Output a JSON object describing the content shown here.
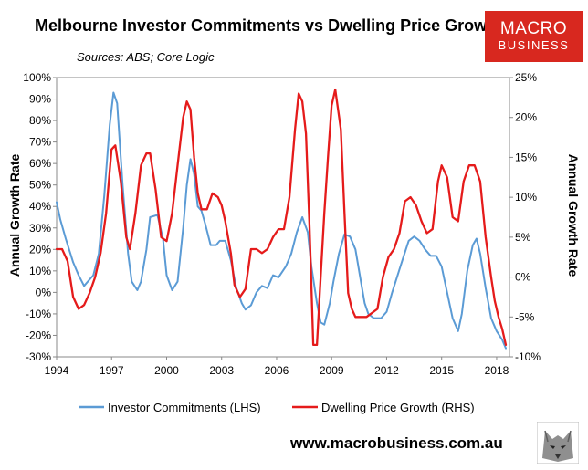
{
  "title": "Melbourne Investor Commitments vs Dwelling Price Growth",
  "sources": "Sources: ABS; Core Logic",
  "logo": {
    "line1": "MACRO",
    "line2": "BUSINESS"
  },
  "website": "www.macrobusiness.com.au",
  "chart_data": {
    "type": "line",
    "xlim": [
      1994,
      2018.7
    ],
    "x_ticks": [
      "1994",
      "1997",
      "2000",
      "2003",
      "2006",
      "2009",
      "2012",
      "2015",
      "2018"
    ],
    "left_axis": {
      "label": "Annual Growth Rate",
      "ylim": [
        -30,
        100
      ],
      "ticks": [
        "-30%",
        "-20%",
        "-10%",
        "0%",
        "10%",
        "20%",
        "30%",
        "40%",
        "50%",
        "60%",
        "70%",
        "80%",
        "90%",
        "100%"
      ]
    },
    "right_axis": {
      "label": "Annual Growth Rate",
      "ylim": [
        -10,
        25
      ],
      "ticks": [
        "-10%",
        "-5%",
        "0%",
        "5%",
        "10%",
        "15%",
        "20%",
        "25%"
      ]
    },
    "grid": false,
    "legend_position": "bottom",
    "series": [
      {
        "name": "Investor Commitments (LHS)",
        "axis": "left",
        "color": "#5b9bd5",
        "x": [
          1994.0,
          1994.2,
          1994.5,
          1994.9,
          1995.2,
          1995.5,
          1995.7,
          1996.0,
          1996.3,
          1996.6,
          1996.9,
          1997.1,
          1997.3,
          1997.6,
          1997.9,
          1998.1,
          1998.4,
          1998.6,
          1998.9,
          1999.1,
          1999.5,
          1999.8,
          2000.0,
          2000.3,
          2000.6,
          2000.9,
          2001.1,
          2001.3,
          2001.5,
          2001.7,
          2001.9,
          2002.1,
          2002.4,
          2002.7,
          2002.9,
          2003.2,
          2003.5,
          2003.8,
          2004.1,
          2004.3,
          2004.6,
          2004.9,
          2005.2,
          2005.5,
          2005.8,
          2006.1,
          2006.5,
          2006.8,
          2007.1,
          2007.4,
          2007.7,
          2007.9,
          2008.2,
          2008.4,
          2008.6,
          2008.9,
          2009.1,
          2009.4,
          2009.7,
          2010.0,
          2010.3,
          2010.6,
          2010.8,
          2011.0,
          2011.3,
          2011.7,
          2012.0,
          2012.3,
          2012.6,
          2012.9,
          2013.2,
          2013.5,
          2013.8,
          2014.1,
          2014.4,
          2014.7,
          2015.0,
          2015.3,
          2015.6,
          2015.9,
          2016.1,
          2016.4,
          2016.7,
          2016.9,
          2017.1,
          2017.4,
          2017.7,
          2018.0,
          2018.3,
          2018.5
        ],
        "values": [
          42,
          34,
          25,
          14,
          8,
          3,
          5,
          8,
          18,
          45,
          78,
          93,
          88,
          50,
          18,
          5,
          1,
          5,
          20,
          35,
          36,
          25,
          8,
          1,
          5,
          30,
          50,
          62,
          55,
          40,
          38,
          32,
          22,
          22,
          24,
          24,
          15,
          2,
          -5,
          -8,
          -6,
          0,
          3,
          2,
          8,
          7,
          12,
          18,
          28,
          35,
          28,
          12,
          -5,
          -14,
          -15,
          -5,
          5,
          18,
          27,
          26,
          20,
          5,
          -5,
          -10,
          -12,
          -12,
          -9,
          0,
          8,
          16,
          24,
          26,
          24,
          20,
          17,
          17,
          12,
          0,
          -12,
          -18,
          -10,
          10,
          22,
          25,
          18,
          2,
          -12,
          -18,
          -22,
          -26
        ]
      },
      {
        "name": "Dwelling Price Growth (RHS)",
        "axis": "right",
        "color": "#e51b1b",
        "x": [
          1994.0,
          1994.3,
          1994.6,
          1994.9,
          1995.2,
          1995.5,
          1995.8,
          1996.1,
          1996.4,
          1996.7,
          1997.0,
          1997.2,
          1997.5,
          1997.8,
          1998.0,
          1998.3,
          1998.6,
          1998.9,
          1999.1,
          1999.4,
          1999.7,
          2000.0,
          2000.3,
          2000.6,
          2000.9,
          2001.1,
          2001.3,
          2001.5,
          2001.7,
          2001.9,
          2002.2,
          2002.5,
          2002.8,
          2003.0,
          2003.2,
          2003.5,
          2003.7,
          2004.0,
          2004.3,
          2004.6,
          2004.9,
          2005.2,
          2005.5,
          2005.8,
          2006.1,
          2006.4,
          2006.7,
          2007.0,
          2007.2,
          2007.4,
          2007.6,
          2007.8,
          2008.0,
          2008.2,
          2008.4,
          2008.6,
          2008.8,
          2009.0,
          2009.2,
          2009.5,
          2009.7,
          2009.9,
          2010.1,
          2010.3,
          2010.6,
          2010.9,
          2011.2,
          2011.5,
          2011.8,
          2012.1,
          2012.4,
          2012.7,
          2013.0,
          2013.3,
          2013.6,
          2013.9,
          2014.2,
          2014.5,
          2014.8,
          2015.0,
          2015.3,
          2015.6,
          2015.9,
          2016.2,
          2016.5,
          2016.8,
          2017.1,
          2017.4,
          2017.7,
          2017.9,
          2018.1,
          2018.3,
          2018.5
        ],
        "values": [
          3.5,
          3.5,
          2.0,
          -2.5,
          -4.0,
          -3.5,
          -2.0,
          0.0,
          3.0,
          8.0,
          16.0,
          16.5,
          12.0,
          5.0,
          3.5,
          8.0,
          14.0,
          15.5,
          15.5,
          11.0,
          5.0,
          4.5,
          8.0,
          14.0,
          20.0,
          22.0,
          21.0,
          15.0,
          10.5,
          8.5,
          8.5,
          10.5,
          10.0,
          9.0,
          7.0,
          3.0,
          -1.0,
          -2.5,
          -1.5,
          3.5,
          3.5,
          3.0,
          3.5,
          5.0,
          6.0,
          6.0,
          10.0,
          18.5,
          23.0,
          22.0,
          18.0,
          6.0,
          -8.5,
          -8.5,
          0.0,
          8.0,
          15.0,
          21.5,
          23.5,
          18.5,
          8.0,
          -2.0,
          -4.0,
          -5.0,
          -5.0,
          -5.0,
          -4.5,
          -4.0,
          0.0,
          2.5,
          3.5,
          5.5,
          9.5,
          10.0,
          9.0,
          7.0,
          5.5,
          6.0,
          12.0,
          14.0,
          12.5,
          7.5,
          7.0,
          12.0,
          14.0,
          14.0,
          12.0,
          5.0,
          0.0,
          -3.0,
          -5.0,
          -6.5,
          -8.5
        ]
      }
    ]
  }
}
